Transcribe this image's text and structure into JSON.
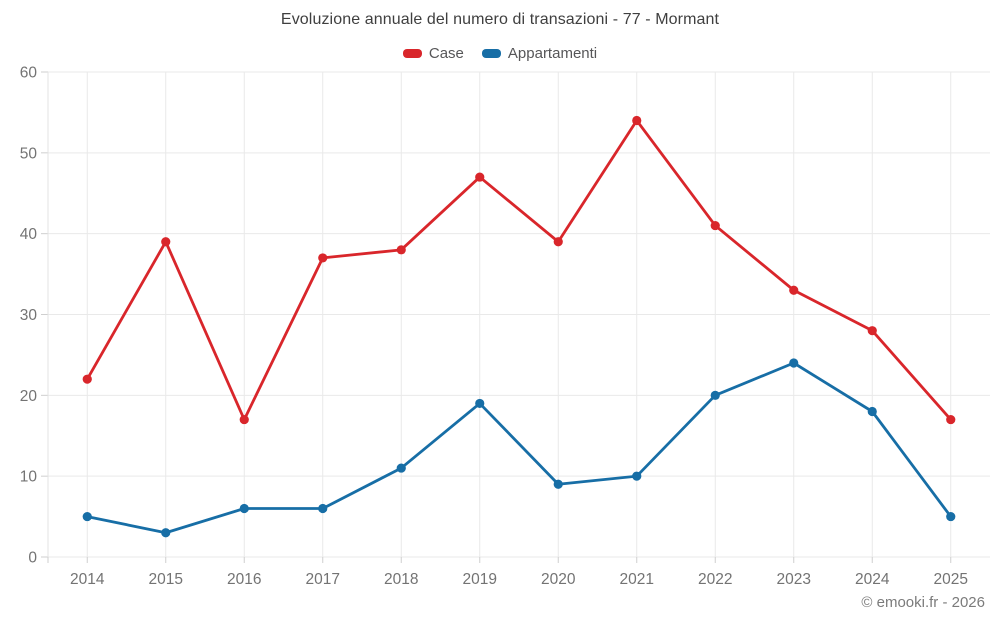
{
  "page": {
    "title": "Evoluzione annuale del numero di transazioni - 77 - Mormant",
    "footer": "© emooki.fr - 2026"
  },
  "legend": {
    "items": [
      {
        "label": "Case",
        "color": "#d9262b"
      },
      {
        "label": "Appartamenti",
        "color": "#176ea6"
      }
    ]
  },
  "chart_data": {
    "type": "line",
    "title": "Evoluzione annuale del numero di transazioni - 77 - Mormant",
    "xlabel": "",
    "ylabel": "",
    "categories": [
      "2014",
      "2015",
      "2016",
      "2017",
      "2018",
      "2019",
      "2020",
      "2021",
      "2022",
      "2023",
      "2024",
      "2025"
    ],
    "series": [
      {
        "name": "Case",
        "color": "#d9262b",
        "values": [
          22,
          39,
          17,
          37,
          38,
          47,
          39,
          54,
          41,
          33,
          28,
          17
        ]
      },
      {
        "name": "Appartamenti",
        "color": "#176ea6",
        "values": [
          5,
          3,
          6,
          6,
          11,
          19,
          9,
          10,
          20,
          24,
          18,
          5
        ]
      }
    ],
    "ylim": [
      0,
      60
    ],
    "yticks": [
      0,
      10,
      20,
      30,
      40,
      50,
      60
    ],
    "grid": true,
    "legend_position": "top",
    "marker": "circle",
    "styles": {
      "grid_color": "#e9e9e9",
      "axis_line_color": "#e3e3e3",
      "tick_color": "#cfcfcf",
      "axis_label_color": "#737373"
    }
  }
}
